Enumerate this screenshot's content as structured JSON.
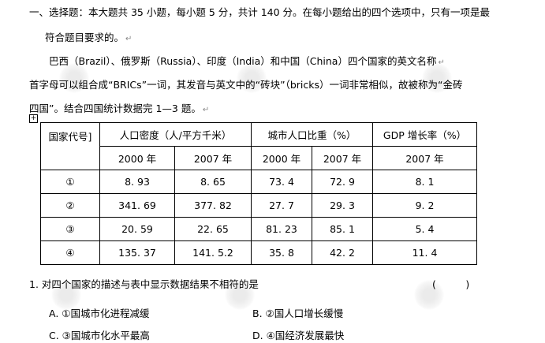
{
  "intro": {
    "line1": "一、选择题：本大题共 35 小题，每小题 5 分，共计 140 分。在每小题给出的四个选项中，只有一项是最",
    "line2": "符合题目要求的。",
    "line3": "巴西（Brazil）、俄罗斯（Russia）、印度（India）和中国（China）四个国家的英文名称",
    "line4": "首字母可以组合成“BRICs”一词，其发音与英文中的“砖块”（bricks）一词非常相似，故被称为“金砖",
    "line5": "四国”。结合四国统计数据完 1—3 题。"
  },
  "table": {
    "header": {
      "code": "国家代号]",
      "density": "人口密度（人/平方千米）",
      "urban": "城市人口比重（%）",
      "gdp": "GDP 增长率（%）"
    },
    "years": [
      "2000 年",
      "2007 年",
      "2000 年",
      "2007 年",
      "2007 年"
    ],
    "rows": [
      [
        "①",
        "8. 93",
        "8. 65",
        "73. 4",
        "72. 9",
        "8. 1"
      ],
      [
        "②",
        "341. 69",
        "377. 82",
        "27. 7",
        "29. 3",
        "9. 2"
      ],
      [
        "③",
        "20. 59",
        "22. 65",
        "81. 23",
        "85. 1",
        "5. 4"
      ],
      [
        "④",
        "135. 37",
        "141. 5.2",
        "35. 8",
        "42. 2",
        "11. 4"
      ]
    ]
  },
  "question": {
    "stem": "1. 对四个国家的描述与表中显示数据结果不相符的是",
    "blank": "(　　　)",
    "options": {
      "A": "A. ①国城市化进程减缓",
      "B": "B. ②国人口增长缓慢",
      "C": "C. ③国城市化水平最高",
      "D": "D. ④国经济发展最快"
    }
  },
  "paragraph_mark": "↵"
}
